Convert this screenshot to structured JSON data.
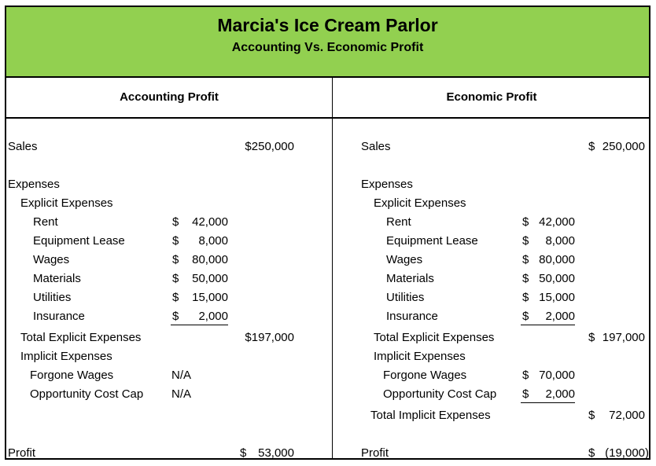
{
  "header": {
    "title": "Marcia's Ice Cream Parlor",
    "subtitle": "Accounting Vs. Economic Profit"
  },
  "accounting": {
    "heading": "Accounting Profit",
    "sales_label": "Sales",
    "sales_value": "$250,000",
    "expenses_label": "Expenses",
    "explicit_label": "Explicit Expenses",
    "items": [
      {
        "label": "Rent",
        "sym": "$",
        "amt": "42,000"
      },
      {
        "label": "Equipment Lease",
        "sym": "$",
        "amt": "8,000"
      },
      {
        "label": "Wages",
        "sym": "$",
        "amt": "80,000"
      },
      {
        "label": "Materials",
        "sym": "$",
        "amt": "50,000"
      },
      {
        "label": "Utilities",
        "sym": "$",
        "amt": "15,000"
      },
      {
        "label": "Insurance",
        "sym": "$",
        "amt": "2,000"
      }
    ],
    "total_explicit_label": "Total Explicit Expenses",
    "total_explicit_value": "$197,000",
    "implicit_label": "Implicit Expenses",
    "implicit_items": [
      {
        "label": "Forgone Wages",
        "value": "N/A"
      },
      {
        "label": "Opportunity Cost Cap",
        "value": "N/A"
      }
    ],
    "profit_label": "Profit",
    "profit_sym": "$",
    "profit_amt": "53,000"
  },
  "economic": {
    "heading": "Economic Profit",
    "sales_label": "Sales",
    "sales_sym": "$",
    "sales_amt": "250,000",
    "expenses_label": "Expenses",
    "explicit_label": "Explicit Expenses",
    "items": [
      {
        "label": "Rent",
        "sym": "$",
        "amt": "42,000"
      },
      {
        "label": "Equipment Lease",
        "sym": "$",
        "amt": "8,000"
      },
      {
        "label": "Wages",
        "sym": "$",
        "amt": "80,000"
      },
      {
        "label": "Materials",
        "sym": "$",
        "amt": "50,000"
      },
      {
        "label": "Utilities",
        "sym": "$",
        "amt": "15,000"
      },
      {
        "label": "Insurance",
        "sym": "$",
        "amt": "2,000"
      }
    ],
    "total_explicit_label": "Total Explicit Expenses",
    "total_explicit_sym": "$",
    "total_explicit_amt": "197,000",
    "implicit_label": "Implicit Expenses",
    "implicit_items": [
      {
        "label": "Forgone Wages",
        "sym": "$",
        "amt": "70,000"
      },
      {
        "label": "Opportunity Cost Cap",
        "sym": "$",
        "amt": "2,000"
      }
    ],
    "total_implicit_label": "Total Implicit Expenses",
    "total_implicit_sym": "$",
    "total_implicit_amt": "72,000",
    "profit_label": "Profit",
    "profit_sym": "$",
    "profit_amt": "(19,000)"
  }
}
